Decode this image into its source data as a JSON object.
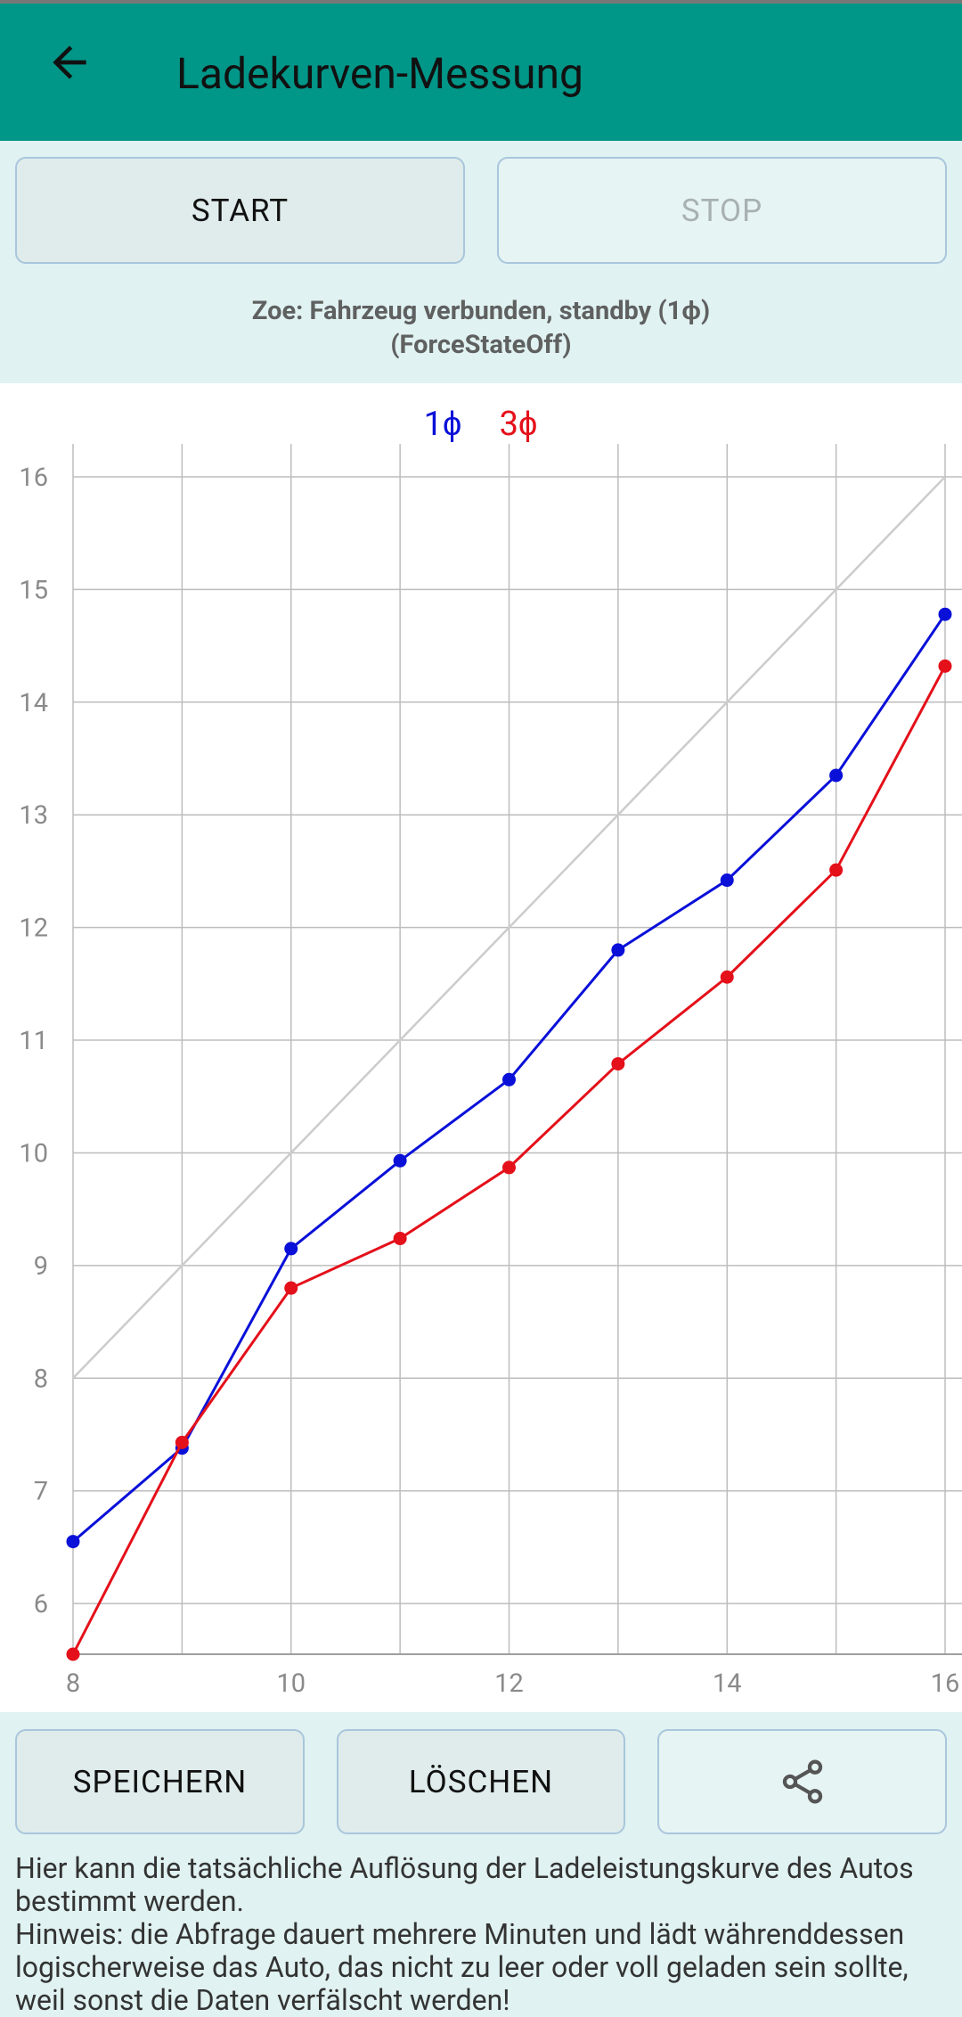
{
  "header": {
    "title": "Ladekurven-Messung"
  },
  "buttons": {
    "start": "START",
    "stop": "STOP",
    "save": "SPEICHERN",
    "delete": "LÖSCHEN"
  },
  "status": [
    "Zoe: Fahrzeug verbunden, standby (1ϕ)",
    "(ForceStateOff)"
  ],
  "chart_data": {
    "type": "line",
    "x": [
      8,
      9,
      10,
      11,
      12,
      13,
      14,
      15,
      16
    ],
    "series": [
      {
        "name": "1ϕ",
        "color": "#0a10d8",
        "values": [
          6.55,
          7.38,
          9.15,
          9.93,
          10.65,
          11.8,
          12.42,
          13.35,
          14.78
        ]
      },
      {
        "name": "3ϕ",
        "color": "#e4101a",
        "values": [
          5.55,
          7.43,
          8.8,
          9.24,
          9.87,
          10.79,
          11.56,
          12.51,
          14.32
        ]
      }
    ],
    "reference_line": {
      "x": [
        8,
        16
      ],
      "values": [
        8,
        16
      ],
      "color": "#cccccc"
    },
    "xlim": [
      8,
      16
    ],
    "xticks": [
      8,
      10,
      12,
      14,
      16
    ],
    "x_minor_ticks": [
      9,
      11,
      13,
      15
    ],
    "ylim": [
      5.55,
      16.15
    ],
    "yticks": [
      6,
      7,
      8,
      9,
      10,
      11,
      12,
      13,
      14,
      15,
      16
    ],
    "grid": true
  },
  "note": [
    "Hier kann die tatsächliche Auflösung der Ladeleistungskurve des Autos",
    "bestimmt werden.",
    "Hinweis: die Abfrage dauert mehrere Minuten und lädt währenddessen",
    "logischerweise das Auto, das nicht zu leer oder voll geladen sein sollte,",
    "weil sonst die Daten verfälscht werden!"
  ]
}
